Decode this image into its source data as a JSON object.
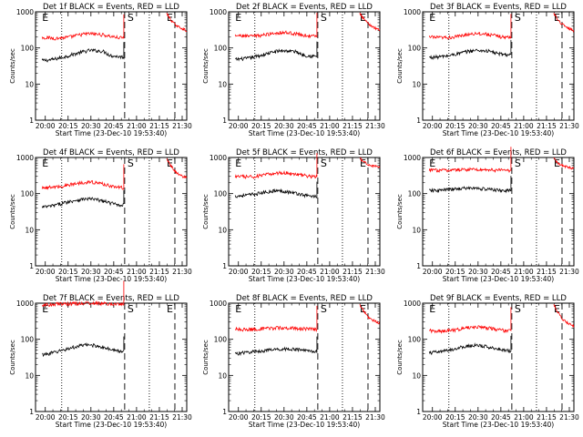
{
  "chart_data": [
    {
      "type": "line",
      "title": "Det 1f BLACK = Events, RED = LLD",
      "xlabel": "Start Time (23-Dec-10 19:53:40)",
      "ylabel": "Counts/sec",
      "yscale": "log",
      "ylim": [
        1,
        1000
      ],
      "xlim": [
        19.893,
        21.55
      ],
      "xticks": [
        "20:00",
        "20:15",
        "20:30",
        "20:45",
        "21:00",
        "21:15",
        "21:30"
      ],
      "yticks": [
        "1",
        "10",
        "100",
        "1000"
      ],
      "markers": [
        "E",
        "S",
        "E"
      ],
      "series": [
        {
          "name": "Events",
          "color": "#000000",
          "values": [
            45,
            46,
            50,
            55,
            62,
            70,
            78,
            86,
            84,
            80,
            62,
            58,
            56
          ]
        },
        {
          "name": "LLD",
          "color": "#ff0000",
          "values": [
            195,
            190,
            185,
            190,
            200,
            220,
            240,
            250,
            240,
            230,
            210,
            195,
            190
          ]
        }
      ],
      "post_red": [
        900,
        600,
        450,
        380,
        340,
        300
      ]
    },
    {
      "type": "line",
      "title": "Det 2f BLACK = Events, RED = LLD",
      "xlabel": "Start Time (23-Dec-10 19:53:40)",
      "ylabel": "Counts/sec",
      "yscale": "log",
      "ylim": [
        1,
        1000
      ],
      "xlim": [
        19.893,
        21.55
      ],
      "xticks": [
        "20:00",
        "20:15",
        "20:30",
        "20:45",
        "21:00",
        "21:15",
        "21:30"
      ],
      "yticks": [
        "1",
        "10",
        "100",
        "1000"
      ],
      "markers": [
        "E",
        "S",
        "E"
      ],
      "series": [
        {
          "name": "Events",
          "color": "#000000",
          "values": [
            48,
            50,
            52,
            58,
            64,
            72,
            80,
            85,
            82,
            78,
            64,
            60,
            58
          ]
        },
        {
          "name": "LLD",
          "color": "#ff0000",
          "values": [
            220,
            215,
            210,
            215,
            225,
            245,
            260,
            270,
            260,
            245,
            225,
            215,
            210
          ]
        }
      ],
      "post_red": [
        900,
        620,
        480,
        400,
        350,
        320
      ]
    },
    {
      "type": "line",
      "title": "Det 3f BLACK = Events, RED = LLD",
      "xlabel": "Start Time (23-Dec-10 19:53:40)",
      "ylabel": "Counts/sec",
      "yscale": "log",
      "ylim": [
        1,
        1000
      ],
      "xlim": [
        19.893,
        21.55
      ],
      "xticks": [
        "20:00",
        "20:15",
        "20:30",
        "20:45",
        "21:00",
        "21:15",
        "21:30"
      ],
      "yticks": [
        "1",
        "10",
        "100",
        "1000"
      ],
      "markers": [
        "E",
        "S",
        "E"
      ],
      "series": [
        {
          "name": "Events",
          "color": "#000000",
          "values": [
            55,
            56,
            58,
            62,
            68,
            75,
            82,
            86,
            84,
            80,
            70,
            66,
            64
          ]
        },
        {
          "name": "LLD",
          "color": "#ff0000",
          "values": [
            200,
            195,
            192,
            195,
            205,
            225,
            245,
            255,
            245,
            232,
            212,
            200,
            196
          ]
        }
      ],
      "post_red": [
        900,
        600,
        460,
        390,
        340,
        300
      ]
    },
    {
      "type": "line",
      "title": "Det 4f BLACK = Events, RED = LLD",
      "xlabel": "Start Time (23-Dec-10 19:53:40)",
      "ylabel": "Counts/sec",
      "yscale": "log",
      "ylim": [
        1,
        1000
      ],
      "xlim": [
        19.893,
        21.55
      ],
      "xticks": [
        "20:00",
        "20:15",
        "20:30",
        "20:45",
        "21:00",
        "21:15",
        "21:30"
      ],
      "yticks": [
        "1",
        "10",
        "100",
        "1000"
      ],
      "markers": [
        "E",
        "S",
        "E"
      ],
      "series": [
        {
          "name": "Events",
          "color": "#000000",
          "values": [
            42,
            44,
            48,
            54,
            60,
            66,
            70,
            72,
            68,
            62,
            55,
            50,
            48
          ]
        },
        {
          "name": "LLD",
          "color": "#ff0000",
          "values": [
            150,
            148,
            152,
            160,
            175,
            190,
            205,
            210,
            200,
            185,
            165,
            150,
            145
          ]
        }
      ],
      "post_red": [
        900,
        600,
        420,
        340,
        300,
        270
      ]
    },
    {
      "type": "line",
      "title": "Det 5f BLACK = Events, RED = LLD",
      "xlabel": "Start Time (23-Dec-10 19:53:40)",
      "ylabel": "Counts/sec",
      "yscale": "log",
      "ylim": [
        1,
        1000
      ],
      "xlim": [
        19.893,
        21.55
      ],
      "xticks": [
        "20:00",
        "20:15",
        "20:30",
        "20:45",
        "21:00",
        "21:15",
        "21:30"
      ],
      "yticks": [
        "1",
        "10",
        "100",
        "1000"
      ],
      "markers": [
        "E",
        "S",
        "E"
      ],
      "series": [
        {
          "name": "Events",
          "color": "#000000",
          "values": [
            85,
            88,
            92,
            98,
            105,
            115,
            120,
            118,
            110,
            102,
            92,
            86,
            82
          ]
        },
        {
          "name": "LLD",
          "color": "#ff0000",
          "values": [
            300,
            295,
            290,
            300,
            320,
            345,
            370,
            380,
            365,
            345,
            320,
            300,
            295
          ]
        }
      ],
      "post_red": [
        950,
        750,
        650,
        600,
        560,
        520
      ]
    },
    {
      "type": "line",
      "title": "Det 6f BLACK = Events, RED = LLD",
      "xlabel": "Start Time (23-Dec-10 19:53:40)",
      "ylabel": "Counts/sec",
      "yscale": "log",
      "ylim": [
        1,
        1000
      ],
      "xlim": [
        19.893,
        21.55
      ],
      "xticks": [
        "20:00",
        "20:15",
        "20:30",
        "20:45",
        "21:00",
        "21:15",
        "21:30"
      ],
      "yticks": [
        "1",
        "10",
        "100",
        "1000"
      ],
      "markers": [
        "E",
        "S",
        "E"
      ],
      "series": [
        {
          "name": "Events",
          "color": "#000000",
          "values": [
            120,
            122,
            125,
            130,
            135,
            140,
            142,
            140,
            135,
            130,
            125,
            122,
            120
          ]
        },
        {
          "name": "LLD",
          "color": "#ff0000",
          "values": [
            450,
            445,
            440,
            445,
            455,
            465,
            470,
            470,
            462,
            455,
            448,
            442,
            440
          ]
        }
      ],
      "post_red": [
        950,
        700,
        600,
        560,
        520,
        480
      ]
    },
    {
      "type": "line",
      "title": "Det 7f BLACK = Events, RED = LLD",
      "xlabel": "Start Time (23-Dec-10 19:53:40)",
      "ylabel": "Counts/sec",
      "yscale": "log",
      "ylim": [
        1,
        1000
      ],
      "xlim": [
        19.893,
        21.55
      ],
      "xticks": [
        "20:00",
        "20:15",
        "20:30",
        "20:45",
        "21:00",
        "21:15",
        "21:30"
      ],
      "yticks": [
        "1",
        "10",
        "100",
        "1000"
      ],
      "markers": [
        "E",
        "S",
        "E"
      ],
      "series": [
        {
          "name": "Events",
          "color": "#000000",
          "values": [
            38,
            40,
            44,
            50,
            56,
            62,
            68,
            70,
            66,
            60,
            52,
            48,
            46
          ]
        },
        {
          "name": "LLD",
          "color": "#ff0000",
          "values": [
            900,
            920,
            940,
            950,
            960,
            980,
            990,
            1000,
            990,
            970,
            950,
            930,
            920
          ]
        }
      ],
      "post_red": []
    },
    {
      "type": "line",
      "title": "Det 8f BLACK = Events, RED = LLD",
      "xlabel": "Start Time (23-Dec-10 19:53:40)",
      "ylabel": "Counts/sec",
      "yscale": "log",
      "ylim": [
        1,
        1000
      ],
      "xlim": [
        19.893,
        21.55
      ],
      "xticks": [
        "20:00",
        "20:15",
        "20:30",
        "20:45",
        "21:00",
        "21:15",
        "21:30"
      ],
      "yticks": [
        "1",
        "10",
        "100",
        "1000"
      ],
      "markers": [
        "E",
        "S",
        "E"
      ],
      "series": [
        {
          "name": "Events",
          "color": "#000000",
          "values": [
            40,
            42,
            44,
            46,
            48,
            50,
            52,
            54,
            54,
            52,
            50,
            48,
            46
          ]
        },
        {
          "name": "LLD",
          "color": "#ff0000",
          "values": [
            190,
            188,
            186,
            190,
            195,
            200,
            205,
            208,
            205,
            200,
            195,
            190,
            188
          ]
        }
      ],
      "post_red": [
        900,
        600,
        420,
        350,
        310,
        280
      ]
    },
    {
      "type": "line",
      "title": "Det 9f BLACK = Events, RED = LLD",
      "xlabel": "Start Time (23-Dec-10 19:53:40)",
      "ylabel": "Counts/sec",
      "yscale": "log",
      "ylim": [
        1,
        1000
      ],
      "xlim": [
        19.893,
        21.55
      ],
      "xticks": [
        "20:00",
        "20:15",
        "20:30",
        "20:45",
        "21:00",
        "21:15",
        "21:30"
      ],
      "yticks": [
        "1",
        "10",
        "100",
        "1000"
      ],
      "markers": [
        "E",
        "S",
        "E"
      ],
      "series": [
        {
          "name": "Events",
          "color": "#000000",
          "values": [
            42,
            44,
            46,
            50,
            56,
            62,
            66,
            68,
            64,
            60,
            55,
            50,
            48
          ]
        },
        {
          "name": "LLD",
          "color": "#ff0000",
          "values": [
            175,
            172,
            170,
            175,
            185,
            200,
            215,
            222,
            215,
            200,
            185,
            175,
            172
          ]
        }
      ],
      "post_red": [
        900,
        550,
        380,
        300,
        260,
        230
      ]
    }
  ]
}
